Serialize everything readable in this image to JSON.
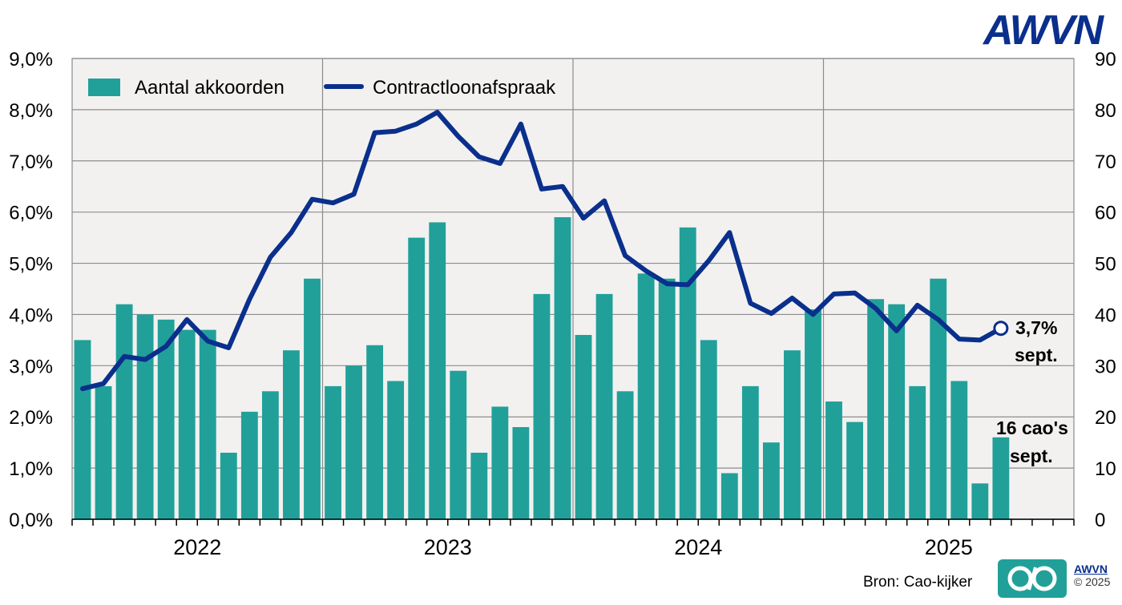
{
  "chart_data": {
    "type": "bar+line",
    "left_axis": {
      "min": 0,
      "max": 9,
      "ticks": [
        "0,0%",
        "1,0%",
        "2,0%",
        "3,0%",
        "4,0%",
        "5,0%",
        "6,0%",
        "7,0%",
        "8,0%",
        "9,0%"
      ]
    },
    "right_axis": {
      "min": 0,
      "max": 90,
      "ticks": [
        "0",
        "10",
        "20",
        "30",
        "40",
        "50",
        "60",
        "70",
        "80",
        "90"
      ]
    },
    "year_labels": [
      "2022",
      "2023",
      "2024",
      "2025"
    ],
    "months_total": 48,
    "series": [
      {
        "name": "Aantal akkoorden",
        "kind": "bar",
        "axis": "right",
        "color": "#21a09a",
        "values": [
          35,
          26,
          42,
          40,
          39,
          37,
          37,
          13,
          21,
          25,
          33,
          47,
          26,
          30,
          34,
          27,
          55,
          58,
          29,
          13,
          22,
          18,
          44,
          59,
          36,
          44,
          25,
          48,
          47,
          57,
          35,
          9,
          26,
          15,
          33,
          41,
          23,
          19,
          43,
          42,
          26,
          47,
          27,
          7,
          16
        ]
      },
      {
        "name": "Contractloonafspraak",
        "kind": "line",
        "axis": "left",
        "color": "#0a2f8c",
        "values": [
          2.55,
          2.65,
          3.18,
          3.12,
          3.38,
          3.9,
          3.48,
          3.35,
          4.3,
          5.12,
          5.6,
          6.25,
          6.18,
          6.35,
          7.55,
          7.58,
          7.72,
          7.95,
          7.48,
          7.08,
          6.95,
          7.72,
          6.45,
          6.5,
          5.88,
          6.22,
          5.15,
          4.85,
          4.6,
          4.58,
          5.05,
          5.6,
          4.22,
          4.02,
          4.32,
          4.0,
          4.4,
          4.42,
          4.12,
          3.68,
          4.18,
          3.9,
          3.52,
          3.5,
          3.73
        ]
      }
    ],
    "annotations": {
      "line_value": "3,7%",
      "line_month": "sept.",
      "bar_count": "16 cao's",
      "bar_month": "sept."
    }
  },
  "branding": {
    "logo_text": "AWVN",
    "source_label": "Bron: Cao-kijker",
    "badge_brand": "AWVN",
    "badge_copy": "© 2025",
    "badge_symbol": "C/O"
  },
  "colors": {
    "plot_bg": "#f2f1f0",
    "bar": "#21a09a",
    "line": "#0a2f8c",
    "grid": "#8c8c8c"
  }
}
